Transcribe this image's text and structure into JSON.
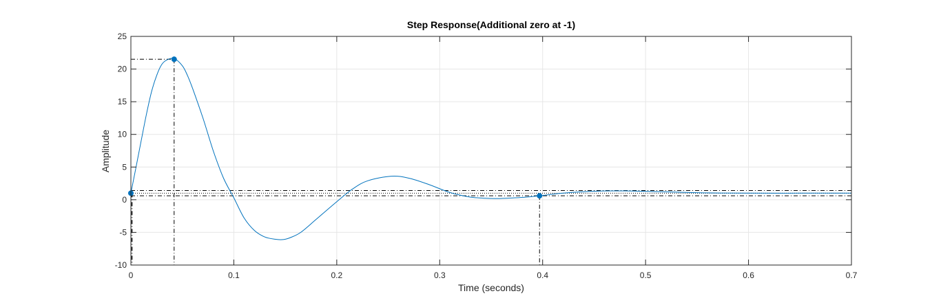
{
  "chart_data": {
    "type": "line",
    "title": "Step Response(Additional zero at -1)",
    "xlabel": "Time (seconds)",
    "ylabel": "Amplitude",
    "xlim": [
      0,
      0.7
    ],
    "ylim": [
      -10,
      25
    ],
    "xticks": [
      0,
      0.1,
      0.2,
      0.3,
      0.4,
      0.5,
      0.6,
      0.7
    ],
    "yticks": [
      -10,
      -5,
      0,
      5,
      10,
      15,
      20,
      25
    ],
    "xtick_labels": [
      "0",
      "0.1",
      "0.2",
      "0.3",
      "0.4",
      "0.5",
      "0.6",
      "0.7"
    ],
    "ytick_labels": [
      "-10",
      "-5",
      "0",
      "5",
      "10",
      "15",
      "20",
      "25"
    ],
    "grid": true,
    "colors": {
      "line": "#0072BD",
      "marker": "#0072BD",
      "reference": "#000000",
      "grid": "#e6e6e6",
      "axes": "#262626"
    },
    "series": [
      {
        "x": [
          0,
          0.005,
          0.01,
          0.015,
          0.02,
          0.025,
          0.03,
          0.035,
          0.042,
          0.05,
          0.055,
          0.06,
          0.07,
          0.08,
          0.09,
          0.1,
          0.11,
          0.12,
          0.13,
          0.14,
          0.148,
          0.155,
          0.165,
          0.18,
          0.2,
          0.215,
          0.23,
          0.253,
          0.27,
          0.29,
          0.31,
          0.33,
          0.35,
          0.36,
          0.38,
          0.397,
          0.42,
          0.45,
          0.48,
          0.52,
          0.56,
          0.6,
          0.65,
          0.7
        ],
        "y": [
          1.0,
          5.0,
          9.0,
          13.0,
          16.5,
          19.0,
          20.7,
          21.4,
          21.6,
          20.5,
          19.0,
          17.0,
          12.5,
          7.5,
          3.3,
          0.3,
          -2.8,
          -4.7,
          -5.7,
          -6.05,
          -6.1,
          -5.8,
          -5.0,
          -3.0,
          -0.3,
          1.6,
          2.9,
          3.6,
          3.3,
          2.3,
          1.1,
          0.4,
          0.2,
          0.2,
          0.35,
          0.6,
          1.0,
          1.3,
          1.35,
          1.2,
          1.05,
          1.0,
          1.0,
          1.0
        ]
      }
    ],
    "markers": [
      {
        "x": 0,
        "y": 1.0
      },
      {
        "x": 0.042,
        "y": 21.5
      },
      {
        "x": 0.397,
        "y": 0.6
      }
    ],
    "reference_lines": {
      "horizontal": [
        1.0,
        0.6,
        1.4,
        21.5
      ],
      "vertical": [
        0.001,
        0.042,
        0.397
      ]
    }
  }
}
